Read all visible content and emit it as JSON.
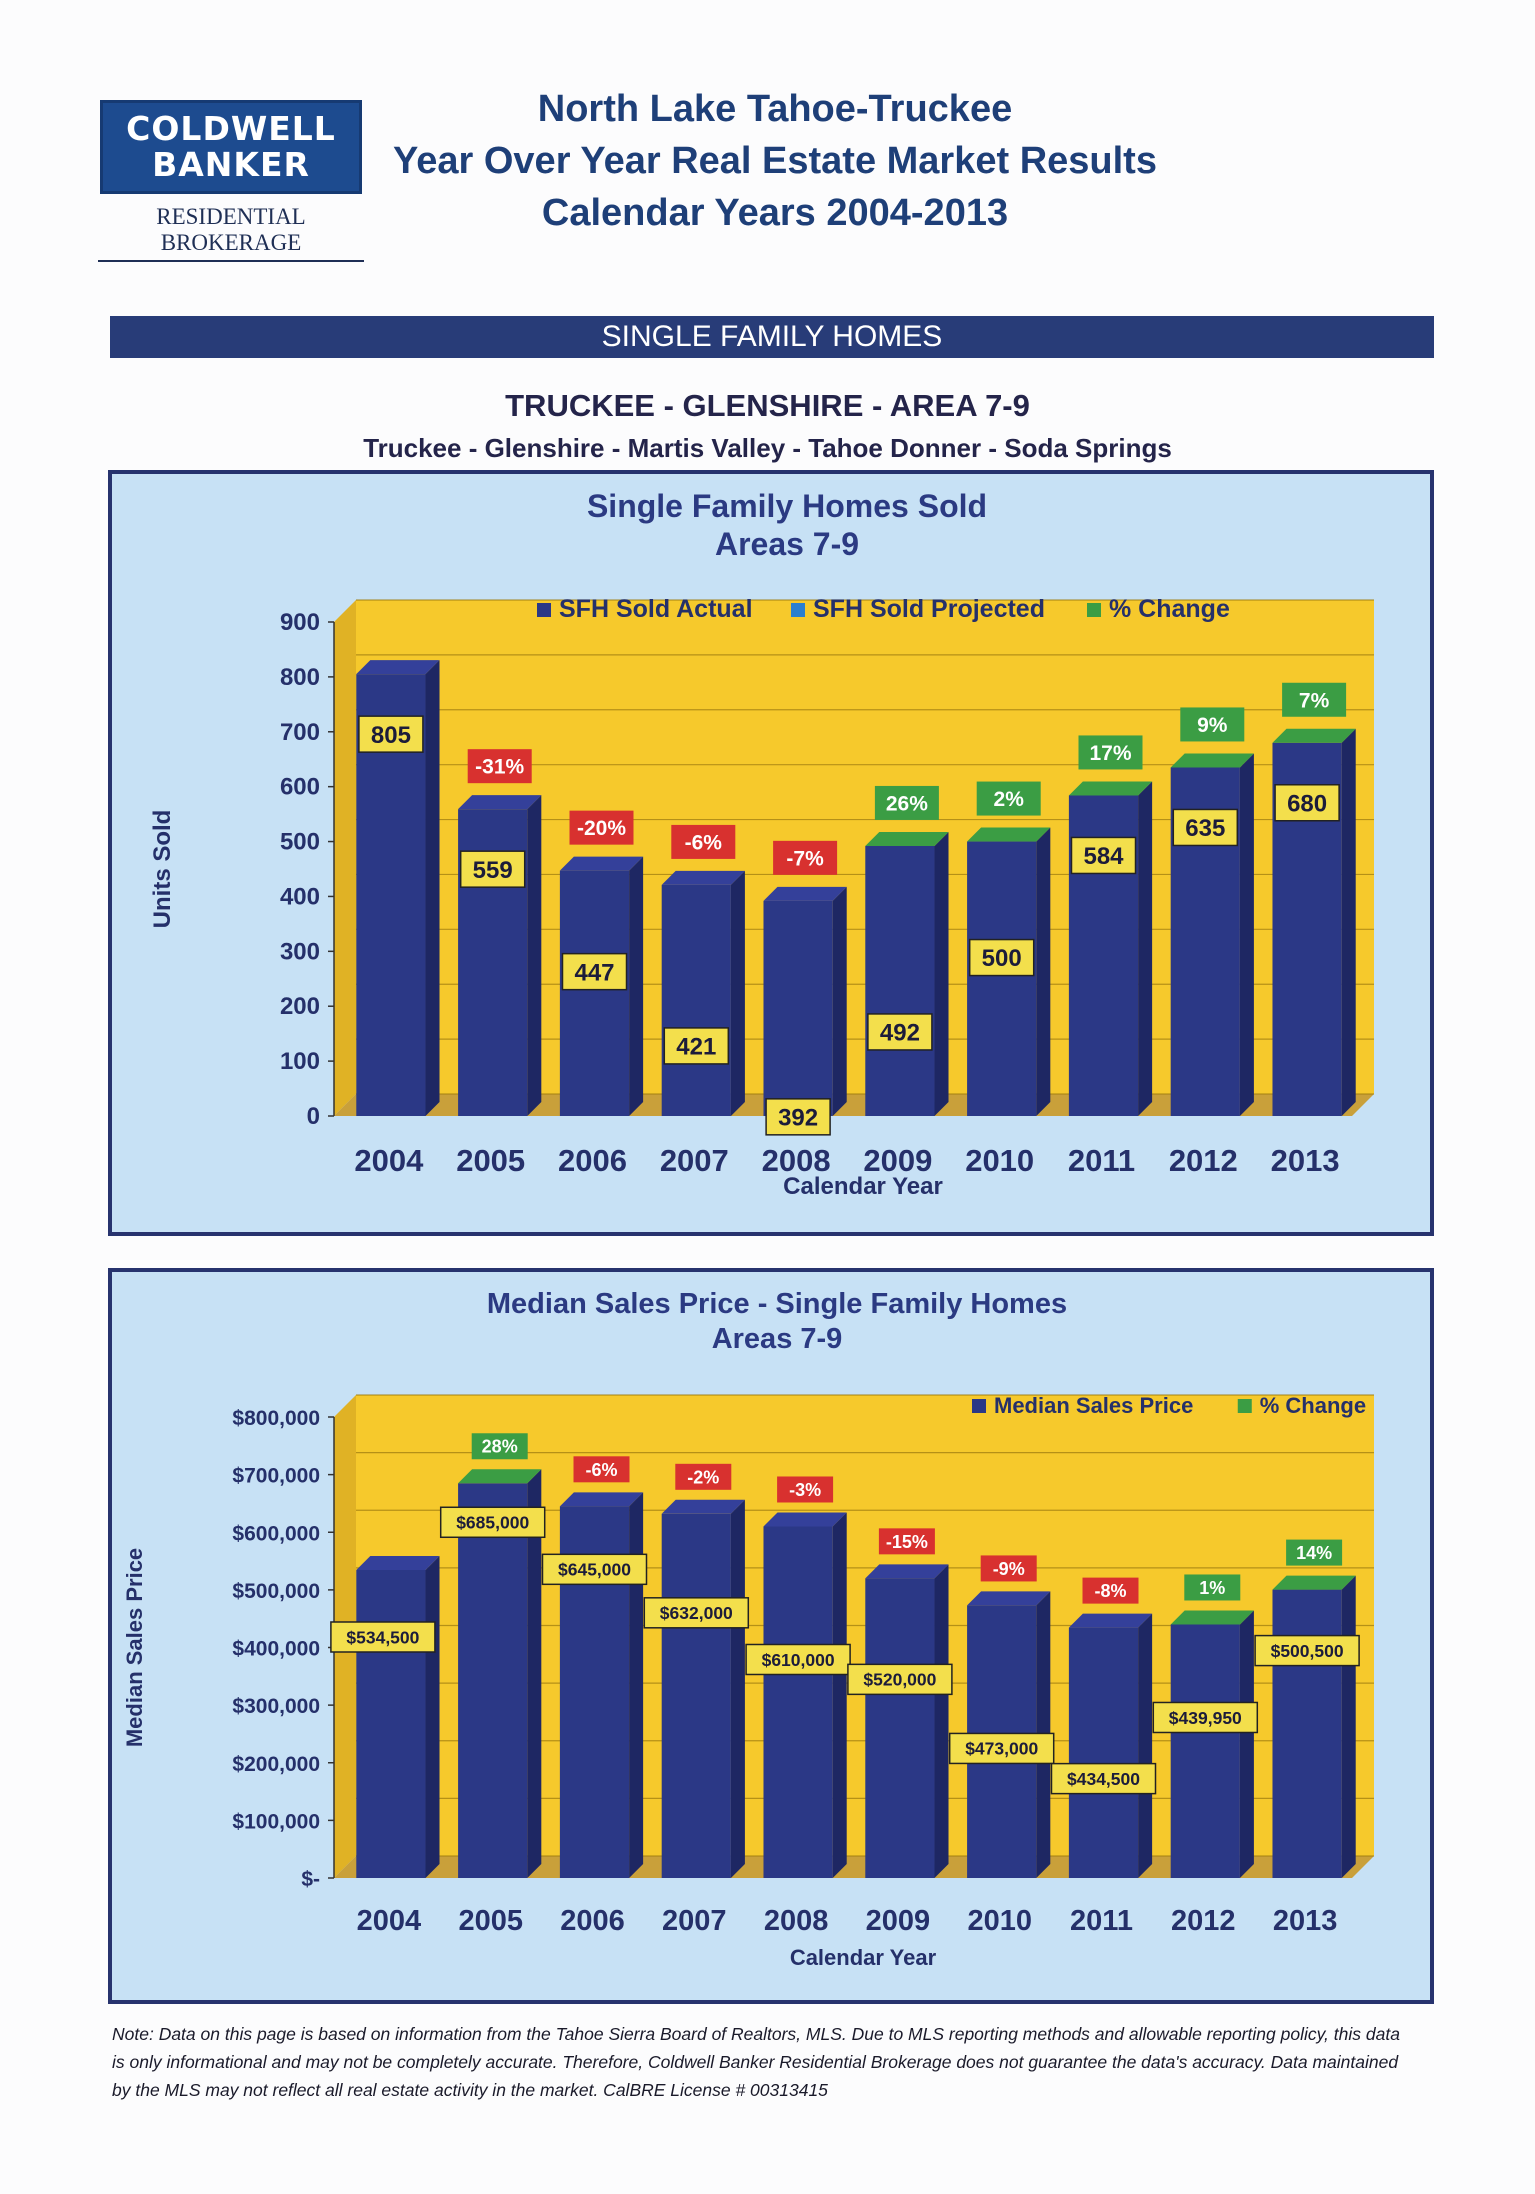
{
  "logo": {
    "line1": "COLDWELL",
    "line2": "BANKER",
    "subtitle": "RESIDENTIAL BROKERAGE"
  },
  "header": {
    "title_line1": "North Lake Tahoe-Truckee",
    "title_line2": "Year Over Year Real Estate Market Results",
    "title_line3": "Calendar Years 2004-2013"
  },
  "section_band": "SINGLE FAMILY HOMES",
  "area": {
    "title": "TRUCKEE - GLENSHIRE - AREA 7-9",
    "subtitle": "Truckee - Glenshire - Martis Valley - Tahoe Donner - Soda Springs"
  },
  "colors": {
    "bar": "#2b3886",
    "bar_top": "#34409a",
    "bar_side": "#1e2763",
    "plot_bg": "#f6c92c",
    "floor": "#c9a03a",
    "panel_bg": "#c7e1f5",
    "label_bg": "#f3df4c",
    "neg_change": "#d8312f",
    "pos_change": "#3b9d44",
    "projected": "#2a7fd0",
    "title_text": "#2b3a82"
  },
  "chart_data": [
    {
      "type": "bar",
      "title": "Single Family Homes Sold",
      "subtitle": "Areas 7-9",
      "xlabel": "Calendar Year",
      "ylabel": "Units Sold",
      "ylim": [
        0,
        900
      ],
      "yticks": [
        "0",
        "100",
        "200",
        "300",
        "400",
        "500",
        "600",
        "700",
        "800",
        "900"
      ],
      "legend_position": "top",
      "legend": [
        "SFH Sold Actual",
        "SFH Sold Projected",
        "% Change"
      ],
      "categories": [
        "2004",
        "2005",
        "2006",
        "2007",
        "2008",
        "2009",
        "2010",
        "2011",
        "2012",
        "2013"
      ],
      "series": [
        {
          "name": "SFH Sold Actual",
          "values": [
            805,
            559,
            447,
            421,
            392,
            492,
            500,
            584,
            635,
            680
          ],
          "labels": [
            "805",
            "559",
            "447",
            "421",
            "392",
            "492",
            "500",
            "584",
            "635",
            "680"
          ]
        }
      ],
      "pct_change": [
        "",
        "-31%",
        "-20%",
        "-6%",
        "-7%",
        "26%",
        "2%",
        "17%",
        "9%",
        "7%"
      ]
    },
    {
      "type": "bar",
      "title": "Median Sales Price - Single Family Homes",
      "subtitle": "Areas 7-9",
      "xlabel": "Calendar Year",
      "ylabel": "Median Sales Price",
      "ylim": [
        0,
        800000
      ],
      "yticks": [
        "$-",
        "$100,000",
        "$200,000",
        "$300,000",
        "$400,000",
        "$500,000",
        "$600,000",
        "$700,000",
        "$800,000"
      ],
      "legend_position": "top-right",
      "legend": [
        "Median Sales Price",
        "% Change"
      ],
      "categories": [
        "2004",
        "2005",
        "2006",
        "2007",
        "2008",
        "2009",
        "2010",
        "2011",
        "2012",
        "2013"
      ],
      "series": [
        {
          "name": "Median Sales Price",
          "values": [
            534500,
            685000,
            645000,
            632000,
            610000,
            520000,
            473000,
            434500,
            439950,
            500500
          ],
          "labels": [
            "$534,500",
            "$685,000",
            "$645,000",
            "$632,000",
            "$610,000",
            "$520,000",
            "$473,000",
            "$434,500",
            "$439,950",
            "$500,500"
          ]
        }
      ],
      "pct_change": [
        "",
        "28%",
        "-6%",
        "-2%",
        "-3%",
        "-15%",
        "-9%",
        "-8%",
        "1%",
        "14%"
      ]
    }
  ],
  "note": "Note: Data on this page is based on information from the Tahoe Sierra Board of Realtors, MLS.  Due to MLS reporting methods and allowable reporting policy, this data is only informational and may not be completely accurate.  Therefore, Coldwell Banker Residential Brokerage does not guarantee the data's accuracy.  Data maintained by the MLS may not reflect all real estate activity in the market.  CalBRE License # 00313415"
}
